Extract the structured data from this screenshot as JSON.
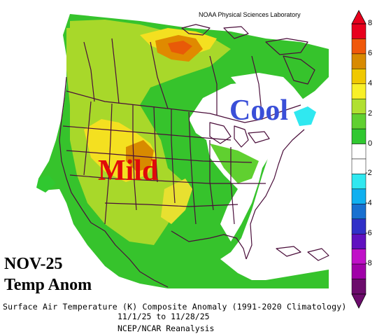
{
  "credit": "NOAA Physical Sciences Laboratory",
  "annotations": {
    "mild": "Mild",
    "cool": "Cool"
  },
  "overlay": {
    "month": "NOV-25",
    "title": "Temp Anom"
  },
  "caption": {
    "line1": "Surface Air Temperature (K) Composite Anomaly (1991-2020 Climatology)",
    "line2": "11/1/25 to 11/28/25",
    "line3": "NCEP/NCAR Reanalysis"
  },
  "colorbar": {
    "ticks": [
      "8",
      "6",
      "4",
      "2",
      "0",
      "-2",
      "-4",
      "-6",
      "-8"
    ],
    "colors": [
      "#e8001c",
      "#f0580a",
      "#d88a00",
      "#f0c800",
      "#f8f028",
      "#b0e030",
      "#60d030",
      "#30c830",
      "#ffffff",
      "#ffffff",
      "#30e8f0",
      "#10b0f0",
      "#1870d0",
      "#3030c8",
      "#6010c0",
      "#c010c8",
      "#a000a8",
      "#6c0c6c"
    ]
  }
}
